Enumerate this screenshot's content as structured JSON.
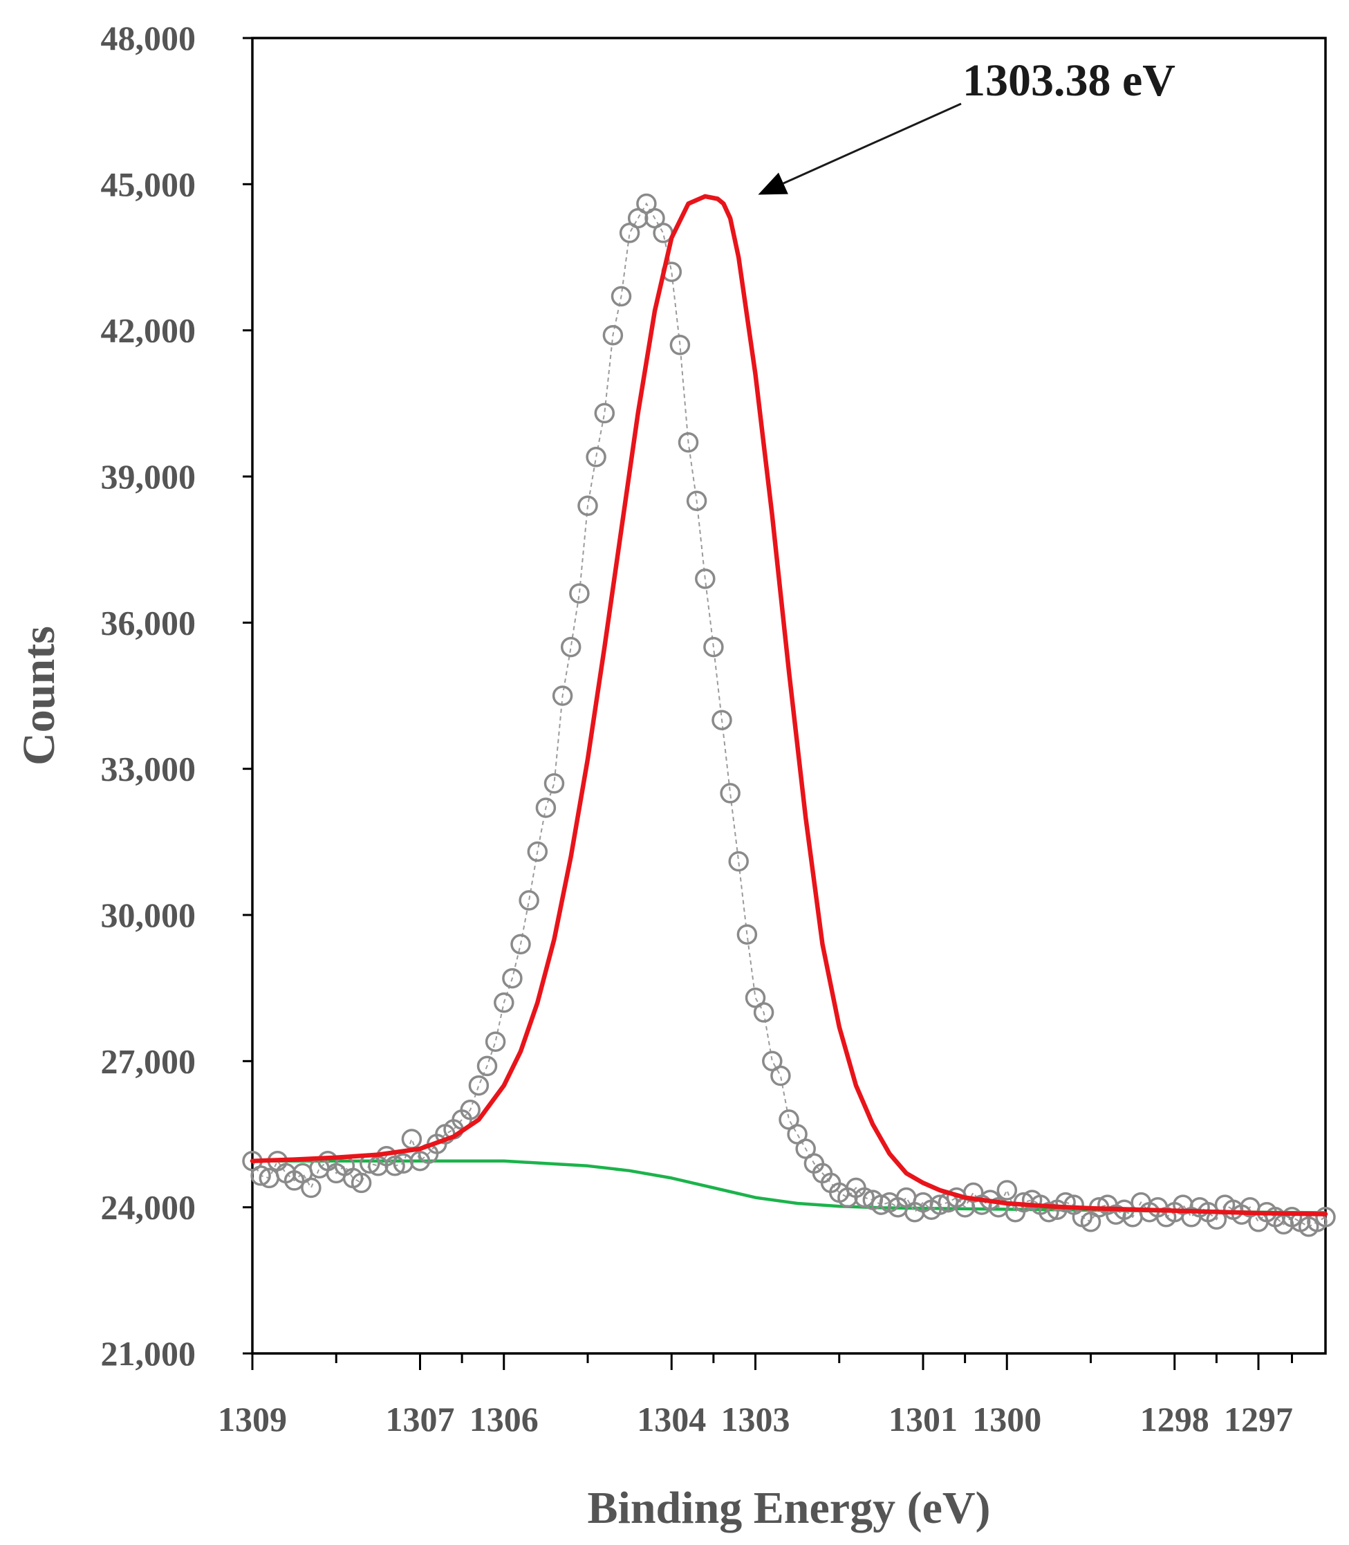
{
  "chart_data": {
    "type": "scatter",
    "title": "",
    "xlabel": "Binding Energy (eV)",
    "ylabel": "Counts",
    "xlim": [
      1309,
      1296.2
    ],
    "ylim": [
      21000,
      48000
    ],
    "x_ticks": [
      1309,
      1307,
      1306,
      1304,
      1303,
      1301,
      1300,
      1298,
      1297
    ],
    "y_ticks": [
      21000,
      24000,
      27000,
      30000,
      33000,
      36000,
      39000,
      42000,
      45000,
      48000
    ],
    "x_tick_labels": [
      "1309",
      "1307",
      "1306",
      "1304",
      "1303",
      "1301",
      "1300",
      "1298",
      "1297"
    ],
    "y_tick_labels": [
      "21,000",
      "24,000",
      "27,000",
      "30,000",
      "33,000",
      "36,000",
      "39,000",
      "42,000",
      "45,000",
      "48,000"
    ],
    "x_axis_reversed": true,
    "grid": false,
    "legend": "none",
    "annotation": {
      "text": "1303.38 eV",
      "points_to": {
        "x": 1303.38,
        "y": 44700
      }
    },
    "series": [
      {
        "type": "scatter",
        "marker": "open-circle",
        "color": "#8a8a8a",
        "x": [
          1309.0,
          1308.9,
          1308.8,
          1308.7,
          1308.6,
          1308.5,
          1308.4,
          1308.3,
          1308.2,
          1308.1,
          1308.0,
          1307.9,
          1307.8,
          1307.7,
          1307.6,
          1307.5,
          1307.4,
          1307.3,
          1307.2,
          1307.1,
          1307.0,
          1306.9,
          1306.8,
          1306.7,
          1306.6,
          1306.5,
          1306.4,
          1306.3,
          1306.2,
          1306.1,
          1306.0,
          1305.9,
          1305.8,
          1305.7,
          1305.6,
          1305.5,
          1305.4,
          1305.3,
          1305.2,
          1305.1,
          1305.0,
          1304.9,
          1304.8,
          1304.7,
          1304.6,
          1304.5,
          1304.4,
          1304.3,
          1304.2,
          1304.1,
          1304.0,
          1303.9,
          1303.8,
          1303.7,
          1303.6,
          1303.5,
          1303.4,
          1303.3,
          1303.2,
          1303.1,
          1303.0,
          1302.9,
          1302.8,
          1302.7,
          1302.6,
          1302.5,
          1302.4,
          1302.3,
          1302.2,
          1302.1,
          1302.0,
          1301.9,
          1301.8,
          1301.7,
          1301.6,
          1301.5,
          1301.4,
          1301.3,
          1301.2,
          1301.1,
          1301.0,
          1300.9,
          1300.8,
          1300.7,
          1300.6,
          1300.5,
          1300.4,
          1300.3,
          1300.2,
          1300.1,
          1300.0,
          1299.9,
          1299.8,
          1299.7,
          1299.6,
          1299.5,
          1299.4,
          1299.3,
          1299.2,
          1299.1,
          1299.0,
          1298.9,
          1298.8,
          1298.7,
          1298.6,
          1298.5,
          1298.4,
          1298.3,
          1298.2,
          1298.1,
          1298.0,
          1297.9,
          1297.8,
          1297.7,
          1297.6,
          1297.5,
          1297.4,
          1297.3,
          1297.2,
          1297.1,
          1297.0,
          1296.9,
          1296.8,
          1296.7,
          1296.6,
          1296.5,
          1296.4,
          1296.3,
          1296.2
        ],
        "y": [
          24950,
          24650,
          24600,
          24950,
          24700,
          24550,
          24700,
          24400,
          24800,
          24950,
          24700,
          24850,
          24600,
          24500,
          24900,
          24850,
          25050,
          24850,
          24900,
          25400,
          24950,
          25100,
          25300,
          25500,
          25600,
          25800,
          26000,
          26500,
          26900,
          27400,
          28200,
          28700,
          29400,
          30300,
          31300,
          32200,
          32700,
          34500,
          35500,
          36600,
          38400,
          39400,
          40300,
          41900,
          42700,
          44000,
          44300,
          44600,
          44300,
          44000,
          43200,
          41700,
          39700,
          38500,
          36900,
          35500,
          34000,
          32500,
          31100,
          29600,
          28300,
          28000,
          27000,
          26700,
          25800,
          25500,
          25200,
          24900,
          24700,
          24500,
          24300,
          24200,
          24400,
          24200,
          24150,
          24050,
          24100,
          24000,
          24200,
          23900,
          24100,
          23950,
          24050,
          24100,
          24200,
          24000,
          24300,
          24050,
          24150,
          24000,
          24350,
          23900,
          24100,
          24150,
          24050,
          23900,
          23950,
          24100,
          24050,
          23800,
          23700,
          24000,
          24050,
          23850,
          23950,
          23800,
          24100,
          23900,
          24000,
          23800,
          23900,
          24050,
          23800,
          24000,
          23900,
          23750,
          24050,
          23950,
          23850,
          24000,
          23700,
          23900,
          23800,
          23650,
          23800,
          23700,
          23600,
          23700,
          23800
        ]
      },
      {
        "type": "line",
        "color": "#e8141a",
        "x": [
          1309.0,
          1308.5,
          1308.0,
          1307.5,
          1307.0,
          1306.6,
          1306.3,
          1306.0,
          1305.8,
          1305.6,
          1305.4,
          1305.2,
          1305.0,
          1304.8,
          1304.6,
          1304.4,
          1304.2,
          1304.0,
          1303.8,
          1303.6,
          1303.45,
          1303.38,
          1303.3,
          1303.2,
          1303.0,
          1302.8,
          1302.6,
          1302.4,
          1302.2,
          1302.0,
          1301.8,
          1301.6,
          1301.4,
          1301.2,
          1301.0,
          1300.8,
          1300.5,
          1300.0,
          1299.5,
          1299.0,
          1298.0,
          1297.0,
          1296.2
        ],
        "y": [
          24950,
          24980,
          25020,
          25080,
          25200,
          25450,
          25800,
          26500,
          27200,
          28200,
          29500,
          31200,
          33200,
          35500,
          37900,
          40300,
          42400,
          43900,
          44600,
          44750,
          44700,
          44600,
          44300,
          43500,
          41100,
          38200,
          35000,
          32000,
          29400,
          27700,
          26500,
          25700,
          25100,
          24700,
          24500,
          24350,
          24200,
          24080,
          24020,
          23980,
          23930,
          23880,
          23860
        ]
      },
      {
        "type": "line",
        "color": "#1bb34b",
        "x": [
          1309.0,
          1308.0,
          1307.0,
          1306.5,
          1306.0,
          1305.5,
          1305.0,
          1304.5,
          1304.0,
          1303.5,
          1303.0,
          1302.5,
          1302.0,
          1301.5,
          1301.0,
          1300.0,
          1299.0,
          1298.0,
          1297.0,
          1296.2
        ],
        "y": [
          24950,
          24950,
          24950,
          24950,
          24950,
          24900,
          24850,
          24750,
          24600,
          24400,
          24200,
          24080,
          24020,
          23990,
          23980,
          23960,
          23940,
          23920,
          23900,
          23890
        ]
      }
    ]
  }
}
